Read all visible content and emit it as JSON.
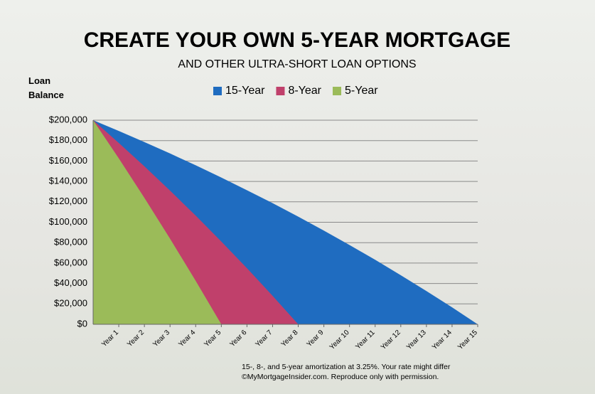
{
  "chart_data": {
    "type": "area",
    "title": "CREATE YOUR OWN 5-YEAR MORTGAGE",
    "subtitle": "AND OTHER ULTRA-SHORT LOAN OPTIONS",
    "y_label": "Loan Balance",
    "x": [
      0,
      1,
      2,
      3,
      4,
      5,
      6,
      7,
      8,
      9,
      10,
      11,
      12,
      13,
      14,
      15
    ],
    "xlim": [
      0,
      15
    ],
    "xticks": [
      {
        "value": 1,
        "label": "Year 1"
      },
      {
        "value": 2,
        "label": "Year 2"
      },
      {
        "value": 3,
        "label": "Year 3"
      },
      {
        "value": 4,
        "label": "Year 4"
      },
      {
        "value": 5,
        "label": "Year 5"
      },
      {
        "value": 6,
        "label": "Year 6"
      },
      {
        "value": 7,
        "label": "Year 7"
      },
      {
        "value": 8,
        "label": "Year 8"
      },
      {
        "value": 9,
        "label": "Year 9"
      },
      {
        "value": 10,
        "label": "Year 10"
      },
      {
        "value": 11,
        "label": "Year 11"
      },
      {
        "value": 12,
        "label": "Year 12"
      },
      {
        "value": 13,
        "label": "Year 13"
      },
      {
        "value": 14,
        "label": "Year 14"
      },
      {
        "value": 15,
        "label": "Year 15"
      }
    ],
    "ylim": [
      0,
      200000
    ],
    "yticks": [
      {
        "value": 0,
        "label": "$0"
      },
      {
        "value": 20000,
        "label": "$20,000"
      },
      {
        "value": 40000,
        "label": "$40,000"
      },
      {
        "value": 60000,
        "label": "$60,000"
      },
      {
        "value": 80000,
        "label": "$80,000"
      },
      {
        "value": 100000,
        "label": "$100,000"
      },
      {
        "value": 120000,
        "label": "$120,000"
      },
      {
        "value": 140000,
        "label": "$140,000"
      },
      {
        "value": 160000,
        "label": "$160,000"
      },
      {
        "value": 180000,
        "label": "$180,000"
      },
      {
        "value": 200000,
        "label": "$200,000"
      }
    ],
    "grid": true,
    "legend": "top",
    "series": [
      {
        "name": "15-Year",
        "color": "#1f6cc0",
        "values": [
          200000,
          189500,
          178600,
          167400,
          155800,
          143800,
          131400,
          118700,
          105500,
          91800,
          77700,
          63200,
          48100,
          32600,
          16600,
          0
        ]
      },
      {
        "name": "8-Year",
        "color": "#c0406b",
        "values": [
          200000,
          177700,
          154800,
          131000,
          106500,
          81100,
          55000,
          27900,
          0,
          null,
          null,
          null,
          null,
          null,
          null,
          null
        ]
      },
      {
        "name": "5-Year",
        "color": "#9bbb59",
        "values": [
          200000,
          162600,
          123900,
          83900,
          42600,
          0,
          null,
          null,
          null,
          null,
          null,
          null,
          null,
          null,
          null,
          null
        ]
      }
    ],
    "notes": [
      "15-, 8-, and 5-year amortization at 3.25%. Your rate might differ",
      "©MyMortgageInsider.com. Reproduce only with permission."
    ]
  }
}
